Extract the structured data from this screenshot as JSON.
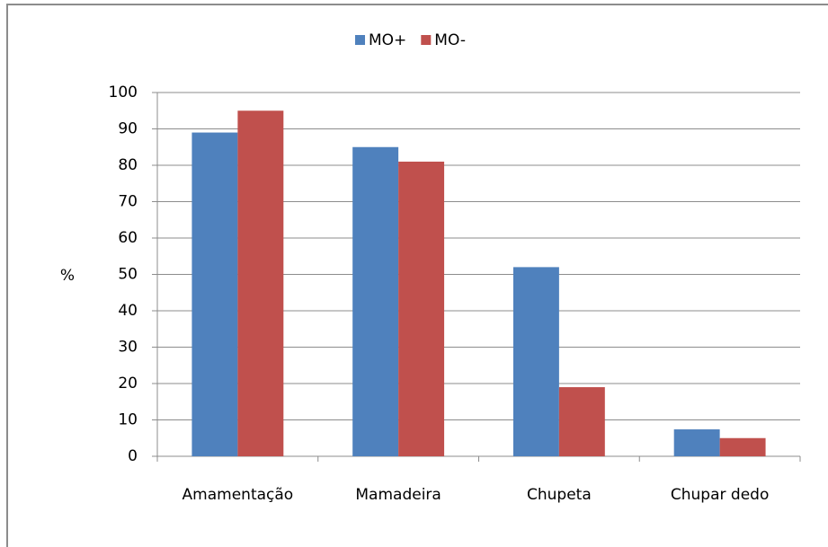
{
  "chart_data": {
    "type": "bar",
    "categories": [
      "Amamentação",
      "Mamadeira",
      "Chupeta",
      "Chupar dedo"
    ],
    "series": [
      {
        "name": "MO+",
        "color": "#4f81bd",
        "values": [
          89,
          85,
          52,
          7.4
        ]
      },
      {
        "name": "MO-",
        "color": "#c0504d",
        "values": [
          95,
          81,
          19,
          5
        ]
      }
    ],
    "y_label": "%",
    "ylim": [
      0,
      100
    ],
    "yticks": [
      0,
      10,
      20,
      30,
      40,
      50,
      60,
      70,
      80,
      90,
      100
    ],
    "grid": true,
    "legend": "top"
  }
}
